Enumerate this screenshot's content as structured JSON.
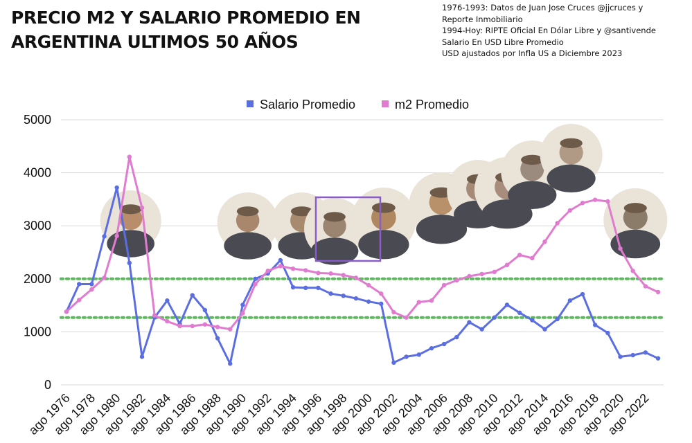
{
  "title": {
    "line1": "PRECIO M2 Y SALARIO PROMEDIO EN",
    "line2": "ARGENTINA ULTIMOS 50 AÑOS"
  },
  "source_note": {
    "lines": [
      "1976-1993: Datos de Juan Jose Cruces @jjcruces y",
      "Reporte Inmobiliario",
      "1994-Hoy: RIPTE Oficial En Dólar Libre y @santivende",
      "Salario En USD Libre Promedio",
      "USD ajustados por Infla US a Diciembre 2023"
    ]
  },
  "colors": {
    "salario": "#5b6ee1",
    "m2": "#e07bd0",
    "reference_lines": "#5cb85c",
    "grid": "#d9d9d9",
    "highlight_box": "#8a5cc8"
  },
  "portraits": [
    "raul-alfonsin-portrait",
    "carlos-menem-portrait",
    "carlos-menem-portrait-2",
    "fernando-de-la-rua-portrait",
    "eduardo-duhalde-portrait",
    "nestor-kirchner-portrait",
    "cristina-kirchner-portrait",
    "cristina-kirchner-portrait-2",
    "mauricio-macri-portrait",
    "alberto-fernandez-portrait",
    "javier-milei-portrait"
  ],
  "chart_data": {
    "type": "line",
    "title": "PRECIO M2 Y SALARIO PROMEDIO EN ARGENTINA ULTIMOS 50 AÑOS",
    "xlabel": "",
    "ylabel": "",
    "ylim": [
      0,
      5000
    ],
    "yticks": [
      0,
      1000,
      2000,
      3000,
      4000,
      5000
    ],
    "grid": "horizontal",
    "legend_position": "top-center",
    "x": [
      1976,
      1977,
      1978,
      1979,
      1980,
      1981,
      1982,
      1983,
      1984,
      1985,
      1986,
      1987,
      1988,
      1989,
      1990,
      1991,
      1992,
      1993,
      1994,
      1995,
      1996,
      1997,
      1998,
      1999,
      2000,
      2001,
      2002,
      2003,
      2004,
      2005,
      2006,
      2007,
      2008,
      2009,
      2010,
      2011,
      2012,
      2013,
      2014,
      2015,
      2016,
      2017,
      2018,
      2019,
      2020,
      2021,
      2022,
      2023
    ],
    "x_tick_labels": [
      "ago 1976",
      "ago 1978",
      "ago 1980",
      "ago 1982",
      "ago 1984",
      "ago 1986",
      "ago 1988",
      "ago 1990",
      "ago 1992",
      "ago 1994",
      "ago 1996",
      "ago 1998",
      "ago 2000",
      "ago 2002",
      "ago 2004",
      "ago 2006",
      "ago 2008",
      "ago 2010",
      "ago 2012",
      "ago 2014",
      "ago 2016",
      "ago 2018",
      "ago 2020",
      "ago 2022"
    ],
    "series": [
      {
        "name": "Salario Promedio",
        "values": [
          1380,
          1900,
          1900,
          2800,
          3720,
          2300,
          530,
          1270,
          1590,
          1150,
          1690,
          1410,
          880,
          400,
          1510,
          2000,
          2100,
          2350,
          1840,
          1830,
          1830,
          1720,
          1680,
          1630,
          1570,
          1530,
          420,
          530,
          570,
          690,
          770,
          900,
          1180,
          1050,
          1270,
          1510,
          1360,
          1220,
          1050,
          1240,
          1590,
          1710,
          1130,
          980,
          530,
          560,
          610,
          500
        ]
      },
      {
        "name": "m2 Promedio",
        "values": [
          1380,
          1600,
          1800,
          2020,
          2810,
          4300,
          3340,
          1310,
          1200,
          1110,
          1110,
          1140,
          1090,
          1050,
          1350,
          1900,
          2150,
          2240,
          2190,
          2160,
          2110,
          2100,
          2070,
          2020,
          1880,
          1720,
          1370,
          1270,
          1560,
          1590,
          1880,
          1970,
          2050,
          2090,
          2130,
          2260,
          2450,
          2390,
          2700,
          3050,
          3290,
          3430,
          3490,
          3460,
          2570,
          2150,
          1860,
          1750
        ]
      }
    ],
    "reference_lines": [
      2000,
      1270
    ]
  }
}
